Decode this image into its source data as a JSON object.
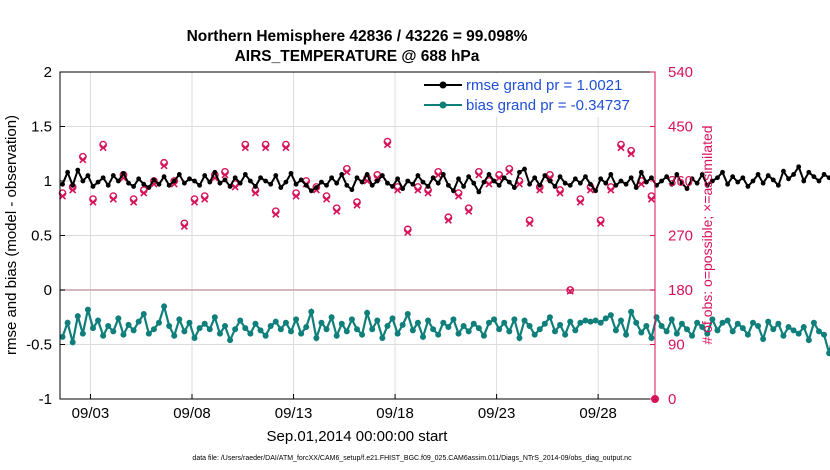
{
  "chart_data": {
    "type": "line",
    "title_line1": "Northern Hemisphere 42836 / 43226 = 99.098%",
    "title_line2": "AIRS_TEMPERATURE @ 688 hPa",
    "xlabel": "Sep.01,2014 00:00:00 start",
    "ylabel_left": "rmse and bias (model - observation)",
    "ylabel_right": "# of obs: o=possible; ×=assimilated",
    "footer": "data file: /Users/raeder/DAI/ATM_forcXX/CAM6_setup/f.e21.FHIST_BGC.f09_025.CAM6assim.011/Diags_NTrS_2014-09/obs_diag_output.nc",
    "x_ticks": [
      3,
      8,
      13,
      18,
      23,
      28
    ],
    "x_tick_labels": [
      "09/03",
      "09/08",
      "09/13",
      "09/18",
      "09/23",
      "09/28"
    ],
    "xlim": [
      1.5,
      30.8
    ],
    "ylim_left": [
      -1,
      2
    ],
    "y_ticks_left": [
      -1,
      -0.5,
      0,
      0.5,
      1,
      1.5,
      2
    ],
    "y_tick_labels_left": [
      "-1",
      "-0.5",
      "0",
      "0.5",
      "1",
      "1.5",
      "2"
    ],
    "ylim_right": [
      0,
      540
    ],
    "y_ticks_right": [
      0,
      90,
      180,
      270,
      360,
      450,
      540
    ],
    "y_tick_labels_right": [
      "0",
      "90",
      "180",
      "270",
      "360",
      "450",
      "540"
    ],
    "grid": true,
    "legend_position": "top-right",
    "series": [
      {
        "name": "rmse grand pr = 1.0021",
        "axis": "left",
        "color": "#000000",
        "x_start": 1.625,
        "x_step": 0.25,
        "values": [
          0.97,
          1.08,
          0.96,
          1.1,
          1.0,
          1.05,
          0.95,
          0.99,
          1.03,
          0.96,
          1.05,
          1.0,
          1.07,
          0.98,
          0.95,
          1.02,
          0.97,
          0.94,
          1.01,
          0.97,
          1.04,
          0.96,
          1.0,
          1.06,
          0.98,
          1.02,
          1.0,
          0.96,
          1.05,
          0.99,
          1.08,
          0.98,
          1.01,
          0.95,
          1.03,
          0.98,
          1.06,
          1.0,
          0.95,
          1.03,
          1.0,
          0.97,
          1.05,
          0.94,
          0.99,
          1.07,
          0.97,
          1.01,
          0.96,
          0.91,
          0.94,
          0.99,
          0.96,
          1.03,
          0.98,
          1.06,
          0.96,
          0.92,
          1.03,
          0.99,
          1.06,
          0.96,
          1.0,
          1.05,
          0.98,
          0.95,
          1.02,
          0.93,
          1.0,
          0.97,
          1.05,
          0.99,
          0.95,
          1.03,
          0.98,
          1.06,
          0.96,
          0.91,
          1.02,
          0.95,
          1.04,
          0.98,
          0.9,
          0.99,
          1.06,
          1.0,
          0.96,
          1.03,
          0.99,
          0.94,
          1.08,
          1.11,
          0.97,
          1.03,
          0.96,
          1.05,
          1.0,
          0.95,
          1.04,
          0.98,
          0.96,
          1.02,
          0.98,
          1.04,
          0.97,
          0.91,
          1.02,
          0.98,
          1.06,
          0.96,
          1.0,
          0.97,
          1.03,
          0.94,
          1.08,
          0.99,
          1.03,
          0.96,
          1.0,
          1.04,
          0.97,
          1.06,
          0.98,
          0.93,
          1.02,
          0.98,
          1.06,
          0.96,
          1.0,
          1.03,
          1.08,
          0.97,
          1.04,
          0.99,
          1.03,
          0.95,
          1.0,
          1.06,
          0.98,
          1.05,
          1.01,
          0.96,
          1.09,
          1.02,
          1.06,
          1.13,
          1.0,
          1.08,
          1.04,
          1.0,
          1.06,
          1.03,
          0.98,
          1.08,
          0.96,
          1.03,
          0.99,
          1.07,
          1.02,
          0.98,
          1.04,
          0.97,
          1.03,
          1.06,
          0.95,
          1.01,
          1.04,
          0.99,
          1.07,
          1.03,
          0.98,
          1.1,
          0.97,
          1.04,
          0.99,
          1.05,
          0.96,
          1.02,
          1.05,
          0.99,
          1.04,
          0.96,
          1.03,
          1.1,
          0.95,
          0.9
        ]
      },
      {
        "name": "bias grand pr = -0.34737",
        "axis": "left",
        "color": "#0e7f7a",
        "x_start": 1.625,
        "x_step": 0.25,
        "values": [
          -0.43,
          -0.3,
          -0.48,
          -0.24,
          -0.4,
          -0.18,
          -0.35,
          -0.28,
          -0.42,
          -0.33,
          -0.38,
          -0.26,
          -0.41,
          -0.32,
          -0.37,
          -0.29,
          -0.22,
          -0.4,
          -0.36,
          -0.3,
          -0.15,
          -0.33,
          -0.42,
          -0.27,
          -0.38,
          -0.3,
          -0.44,
          -0.35,
          -0.31,
          -0.36,
          -0.25,
          -0.4,
          -0.33,
          -0.46,
          -0.36,
          -0.28,
          -0.35,
          -0.4,
          -0.31,
          -0.37,
          -0.42,
          -0.33,
          -0.29,
          -0.36,
          -0.3,
          -0.38,
          -0.27,
          -0.4,
          -0.34,
          -0.2,
          -0.44,
          -0.3,
          -0.36,
          -0.25,
          -0.42,
          -0.31,
          -0.38,
          -0.27,
          -0.36,
          -0.41,
          -0.21,
          -0.36,
          -0.28,
          -0.44,
          -0.33,
          -0.26,
          -0.4,
          -0.32,
          -0.22,
          -0.37,
          -0.3,
          -0.43,
          -0.28,
          -0.36,
          -0.41,
          -0.3,
          -0.34,
          -0.27,
          -0.4,
          -0.33,
          -0.38,
          -0.31,
          -0.35,
          -0.42,
          -0.3,
          -0.27,
          -0.36,
          -0.3,
          -0.38,
          -0.27,
          -0.44,
          -0.28,
          -0.33,
          -0.41,
          -0.36,
          -0.31,
          -0.25,
          -0.38,
          -0.32,
          -0.41,
          -0.29,
          -0.37,
          -0.3,
          -0.28,
          -0.29,
          -0.28,
          -0.3,
          -0.26,
          -0.23,
          -0.37,
          -0.28,
          -0.41,
          -0.2,
          -0.3,
          -0.39,
          -0.33,
          -0.44,
          -0.25,
          -0.33,
          -0.38,
          -0.27,
          -0.4,
          -0.31,
          -0.36,
          -0.42,
          -0.3,
          -0.34,
          -0.4,
          -0.27,
          -0.37,
          -0.3,
          -0.28,
          -0.38,
          -0.31,
          -0.35,
          -0.41,
          -0.3,
          -0.33,
          -0.45,
          -0.29,
          -0.36,
          -0.31,
          -0.42,
          -0.34,
          -0.37,
          -0.4,
          -0.34,
          -0.46,
          -0.3,
          -0.38,
          -0.41,
          -0.58,
          -0.37,
          -0.46,
          -0.3,
          -0.52,
          -0.31,
          -0.38,
          -0.3,
          -0.41,
          -0.27,
          -0.37,
          -0.33,
          -0.43,
          -0.28,
          -0.36,
          -0.2,
          -0.4,
          -0.31,
          -0.25,
          -0.36,
          -0.3,
          -0.2,
          -0.39,
          -0.28,
          -0.33,
          -0.15,
          -0.25,
          -0.41,
          -0.31,
          -0.2,
          -0.38,
          -0.31,
          -0.17,
          -0.25,
          -0.2,
          -0.32,
          -0.16,
          -0.22,
          -0.15,
          -0.4,
          -0.15
        ]
      },
      {
        "name": "possible observations",
        "axis": "right",
        "color": "#d6135a",
        "marker": "circle",
        "x_start": 1.625,
        "x_step": 0.5,
        "values": [
          340,
          350,
          400,
          330,
          420,
          335,
          370,
          330,
          345,
          360,
          390,
          360,
          290,
          330,
          335,
          370,
          375,
          355,
          420,
          345,
          420,
          310,
          420,
          340,
          360,
          350,
          335,
          315,
          380,
          325,
          365,
          370,
          425,
          350,
          280,
          350,
          345,
          375,
          300,
          340,
          315,
          375,
          360,
          370,
          380,
          360,
          295,
          350,
          370,
          345,
          180,
          330,
          350,
          295,
          350,
          420,
          410,
          360,
          335,
          390,
          300,
          425,
          370,
          340,
          375,
          360,
          330,
          340,
          315,
          355,
          375,
          330,
          330,
          365,
          345,
          390,
          330,
          360,
          335,
          325,
          365,
          380,
          365,
          360,
          360,
          380,
          300,
          345,
          315,
          345,
          350,
          305,
          325,
          315,
          345,
          360,
          315,
          320,
          360,
          305,
          320,
          355,
          360,
          370,
          375,
          310,
          330,
          310,
          375,
          360,
          325,
          360,
          380,
          305,
          290,
          380,
          355,
          350,
          310,
          325,
          320,
          310,
          325,
          335,
          390,
          345,
          390,
          335,
          345,
          315,
          365,
          380,
          335,
          305,
          335,
          310,
          340,
          320,
          345,
          325,
          315,
          330,
          305,
          315,
          320,
          310,
          295,
          385,
          345,
          330,
          325,
          345,
          310,
          340,
          320,
          355,
          380,
          325,
          335,
          315,
          320,
          315,
          340,
          310,
          305,
          300,
          325,
          335,
          330,
          355,
          305,
          330,
          320,
          340,
          300,
          315,
          320,
          310,
          295,
          330,
          330
        ]
      },
      {
        "name": "assimilated observations",
        "axis": "right",
        "color": "#d6135a",
        "marker": "x",
        "x_start": 1.625,
        "x_step": 0.5,
        "values": [
          335,
          345,
          395,
          325,
          415,
          330,
          365,
          325,
          340,
          355,
          385,
          355,
          285,
          325,
          330,
          365,
          370,
          350,
          415,
          340,
          415,
          305,
          415,
          335,
          355,
          345,
          330,
          310,
          375,
          320,
          360,
          365,
          420,
          345,
          275,
          345,
          340,
          370,
          295,
          335,
          310,
          370,
          355,
          365,
          375,
          355,
          290,
          345,
          365,
          340,
          178,
          325,
          345,
          290,
          345,
          415,
          405,
          355,
          330,
          385,
          295,
          420,
          365,
          335,
          370,
          355,
          325,
          335,
          310,
          350,
          370,
          325,
          325,
          360,
          340,
          385,
          325,
          355,
          330,
          320,
          360,
          375,
          360,
          355,
          355,
          375,
          295,
          340,
          310,
          340,
          345,
          300,
          320,
          310,
          340,
          355,
          310,
          315,
          355,
          300,
          315,
          350,
          355,
          365,
          370,
          305,
          325,
          305,
          370,
          355,
          320,
          355,
          375,
          300,
          285,
          375,
          350,
          345,
          305,
          320,
          315,
          305,
          320,
          330,
          385,
          340,
          385,
          330,
          340,
          310,
          360,
          375,
          330,
          300,
          330,
          305,
          335,
          315,
          340,
          320,
          310,
          325,
          300,
          310,
          315,
          305,
          290,
          380,
          340,
          325,
          320,
          340,
          305,
          335,
          315,
          350,
          375,
          320,
          330,
          310,
          315,
          310,
          335,
          305,
          300,
          295,
          320,
          330,
          325,
          350,
          300,
          325,
          315,
          335,
          295,
          310,
          315,
          305,
          290,
          325,
          325
        ]
      }
    ],
    "zero_line": {
      "value": 0,
      "color": "#c7a1a8"
    },
    "right_axis_last_marker": {
      "x": 30.8,
      "value": 0
    }
  }
}
